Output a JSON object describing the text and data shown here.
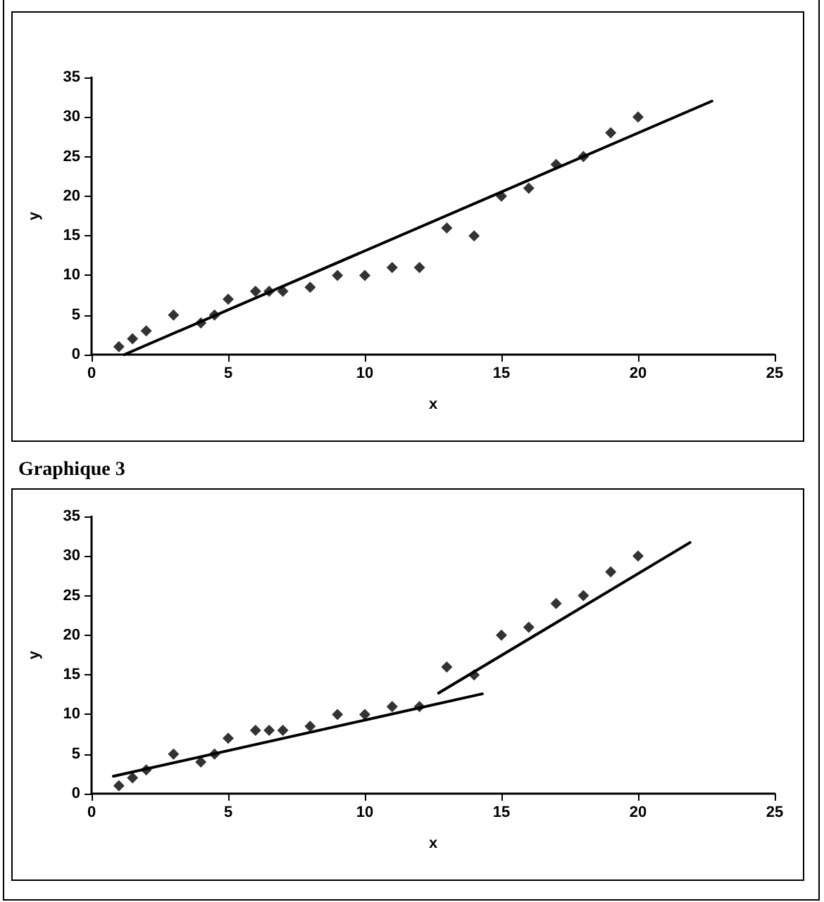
{
  "chart_data": [
    {
      "type": "scatter",
      "xlabel": "x",
      "ylabel": "y",
      "xlim": [
        0,
        25
      ],
      "ylim": [
        0,
        35
      ],
      "xticks": [
        0,
        5,
        10,
        15,
        20,
        25
      ],
      "yticks": [
        0,
        5,
        10,
        15,
        20,
        25,
        30,
        35
      ],
      "grid": false,
      "marker": "diamond",
      "series": [
        {
          "color": "#000000",
          "x": [
            1,
            1.5,
            2,
            3,
            4,
            4.5,
            5,
            6,
            6.5,
            7,
            8,
            9,
            10,
            11,
            12,
            13,
            14,
            15,
            16,
            17,
            18,
            19,
            20
          ],
          "values": [
            1,
            2,
            3,
            5,
            4,
            5,
            7,
            8,
            8,
            8,
            8.5,
            10,
            10,
            11,
            11,
            16,
            15,
            20,
            21,
            24,
            25,
            28,
            30
          ]
        },
        {
          "type": "line",
          "color": "#000000",
          "marker": "none",
          "line_style": "solid",
          "x": [
            1.2,
            22.7
          ],
          "values": [
            0,
            32
          ]
        }
      ]
    },
    {
      "type": "scatter",
      "title": "Graphique 3",
      "xlabel": "x",
      "ylabel": "y",
      "xlim": [
        0,
        25
      ],
      "ylim": [
        0,
        35
      ],
      "xticks": [
        0,
        5,
        10,
        15,
        20,
        25
      ],
      "yticks": [
        0,
        5,
        10,
        15,
        20,
        25,
        30,
        35
      ],
      "grid": false,
      "marker": "diamond",
      "series": [
        {
          "color": "#000000",
          "x": [
            1,
            1.5,
            2,
            3,
            4,
            4.5,
            5,
            6,
            6.5,
            7,
            8,
            9,
            10,
            11,
            12,
            13,
            14,
            15,
            16,
            17,
            18,
            19,
            20
          ],
          "values": [
            1,
            2,
            3,
            5,
            4,
            5,
            7,
            8,
            8,
            8,
            8.5,
            10,
            10,
            11,
            11,
            16,
            15,
            20,
            21,
            24,
            25,
            28,
            30
          ]
        },
        {
          "type": "line",
          "color": "#000000",
          "marker": "none",
          "line_style": "solid",
          "x": [
            0.8,
            14.3
          ],
          "values": [
            2.2,
            12.6
          ]
        },
        {
          "type": "line",
          "color": "#000000",
          "marker": "none",
          "line_style": "solid",
          "x": [
            12.7,
            21.9
          ],
          "values": [
            12.7,
            31.7
          ]
        }
      ]
    }
  ]
}
